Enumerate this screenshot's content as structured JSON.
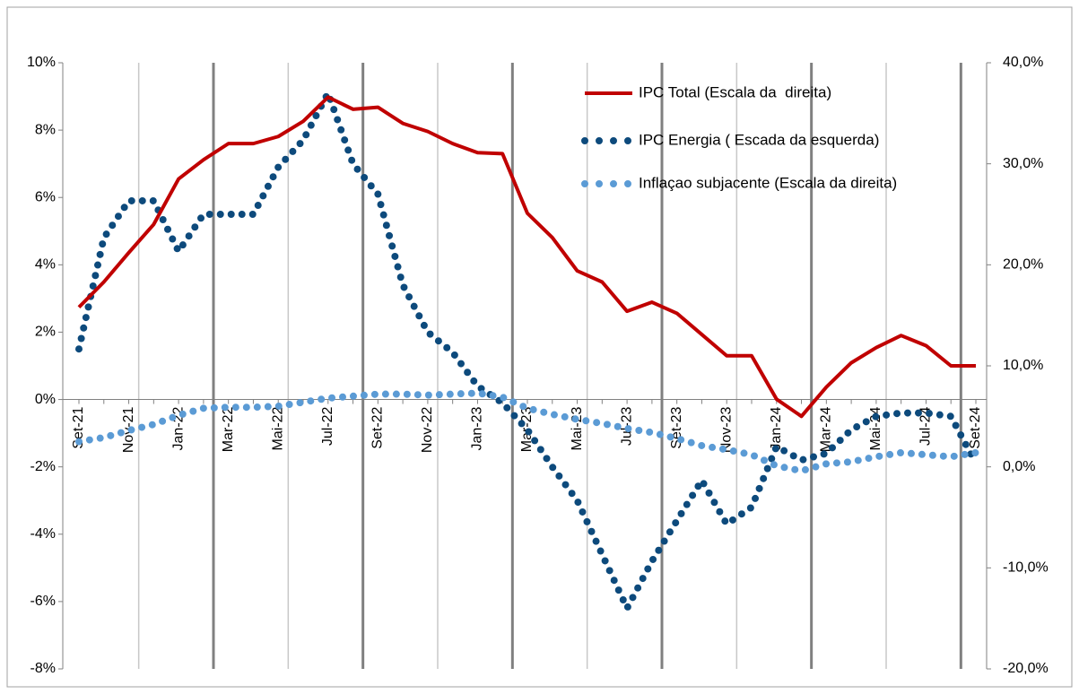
{
  "chart_data": {
    "type": "line",
    "categories": [
      "Set-21",
      null,
      "Nov-21",
      null,
      "Jan-22",
      null,
      "Mar-22",
      null,
      "Mai-22",
      null,
      "Jul-22",
      null,
      "Set-22",
      null,
      "Nov-22",
      null,
      "Jan-23",
      null,
      "Mar-23",
      null,
      "Mai-23",
      null,
      "Jul-23",
      null,
      "Set-23",
      null,
      "Nov-23",
      null,
      "Jan-24",
      null,
      "Mar-24",
      null,
      "Mai-24",
      null,
      "Jul-24",
      null,
      "Set-24"
    ],
    "series": [
      {
        "name": "IPC Total (Escala da  direita)",
        "color": "#c00000",
        "axis": "y2",
        "style": "solid",
        "values": [
          15.8,
          18.3,
          21.2,
          24.0,
          28.5,
          30.4,
          32.0,
          32.0,
          32.7,
          34.2,
          36.6,
          35.4,
          35.6,
          34.0,
          33.2,
          32.0,
          31.1,
          31.0,
          25.1,
          22.7,
          19.4,
          18.3,
          15.4,
          16.3,
          15.2,
          13.1,
          11.0,
          11.0,
          6.7,
          5.0,
          7.9,
          10.3,
          11.8,
          13.0,
          12.0,
          10.0,
          10.0
        ]
      },
      {
        "name": "IPC Energia ( Escada da esquerda)",
        "color": "#0d4a7c",
        "axis": "y",
        "style": "dotted",
        "values": [
          1.5,
          4.8,
          5.9,
          5.9,
          4.4,
          5.5,
          5.5,
          5.5,
          6.9,
          7.7,
          9.1,
          7.0,
          6.1,
          3.4,
          2.0,
          1.4,
          0.4,
          -0.1,
          -0.9,
          -2.0,
          -3.0,
          -4.6,
          -6.2,
          -4.8,
          -3.6,
          -2.4,
          -3.7,
          -3.2,
          -1.4,
          -1.8,
          -1.6,
          -0.9,
          -0.5,
          -0.4,
          -0.4,
          -0.5,
          -1.9
        ]
      },
      {
        "name": "Inflaçao subjacente (Escala da direita)",
        "color": "#5b9bd5",
        "axis": "y2",
        "style": "dotted",
        "values": [
          2.5,
          2.9,
          3.6,
          4.2,
          5.1,
          5.8,
          5.9,
          5.9,
          6.0,
          6.4,
          6.8,
          7.0,
          7.2,
          7.2,
          7.1,
          7.2,
          7.3,
          6.9,
          5.8,
          5.2,
          4.7,
          4.3,
          3.8,
          3.4,
          2.8,
          2.1,
          1.7,
          1.2,
          0.1,
          -0.4,
          0.3,
          0.5,
          1.0,
          1.4,
          1.2,
          1.0,
          1.4
        ]
      }
    ],
    "ylim": [
      -8,
      10
    ],
    "yticks": [
      {
        "value": -8,
        "label": "-8%"
      },
      {
        "value": -6,
        "label": "-6%"
      },
      {
        "value": -4,
        "label": "-4%"
      },
      {
        "value": -2,
        "label": "-2%"
      },
      {
        "value": 0,
        "label": "0%"
      },
      {
        "value": 2,
        "label": "2%"
      },
      {
        "value": 4,
        "label": "4%"
      },
      {
        "value": 6,
        "label": "6%"
      },
      {
        "value": 8,
        "label": "8%"
      },
      {
        "value": 10,
        "label": "10%"
      }
    ],
    "y2lim": [
      -20,
      40
    ],
    "y2ticks": [
      {
        "value": -20,
        "label": "-20,0%"
      },
      {
        "value": -10,
        "label": "-10,0%"
      },
      {
        "value": 0,
        "label": "0,0%"
      },
      {
        "value": 10,
        "label": "10,0%"
      },
      {
        "value": 20,
        "label": "20,0%"
      },
      {
        "value": 30,
        "label": "30,0%"
      },
      {
        "value": 40,
        "label": "40,0%"
      }
    ],
    "legend": "upper right",
    "grid": false
  }
}
